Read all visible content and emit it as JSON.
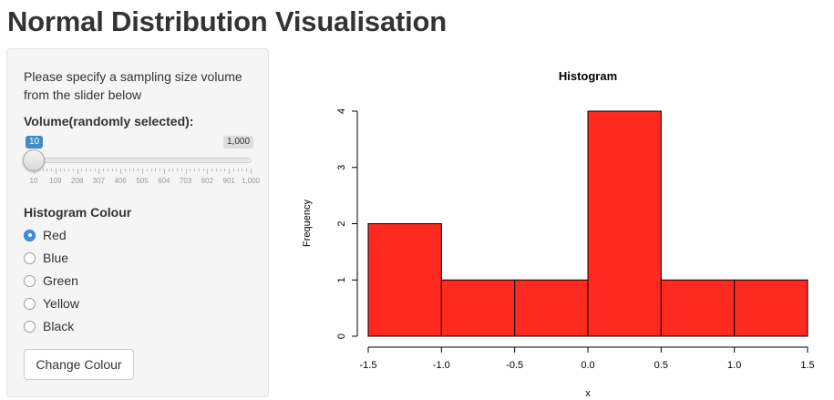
{
  "page": {
    "title": "Normal Distribution Visualisation"
  },
  "sidebar": {
    "instructions": "Please specify a sampling size volume from the slider below",
    "slider": {
      "label": "Volume(randomly selected):",
      "min_badge": "10",
      "max_badge": "1,000",
      "value_fraction": 0.0,
      "tick_labels": [
        "10",
        "109",
        "208",
        "307",
        "406",
        "505",
        "604",
        "703",
        "802",
        "901",
        "1,000"
      ]
    },
    "colour": {
      "label": "Histogram Colour",
      "options": [
        {
          "label": "Red",
          "checked": true
        },
        {
          "label": "Blue",
          "checked": false
        },
        {
          "label": "Green",
          "checked": false
        },
        {
          "label": "Yellow",
          "checked": false
        },
        {
          "label": "Black",
          "checked": false
        }
      ]
    },
    "button_label": "Change Colour"
  },
  "chart_data": {
    "type": "bar",
    "title": "Histogram",
    "xlabel": "x",
    "ylabel": "Frequency",
    "bin_edges": [
      -1.5,
      -1.0,
      -0.5,
      0.0,
      0.5,
      1.0,
      1.5
    ],
    "values": [
      2,
      1,
      1,
      4,
      1,
      1
    ],
    "xlim": [
      -1.5,
      1.5
    ],
    "ylim": [
      0,
      4
    ],
    "x_ticks": [
      "-1.5",
      "-1.0",
      "-0.5",
      "0.0",
      "0.5",
      "1.0",
      "1.5"
    ],
    "y_ticks": [
      "0",
      "1",
      "2",
      "3",
      "4"
    ],
    "bar_color": "#ff2a1f",
    "grid": false
  }
}
